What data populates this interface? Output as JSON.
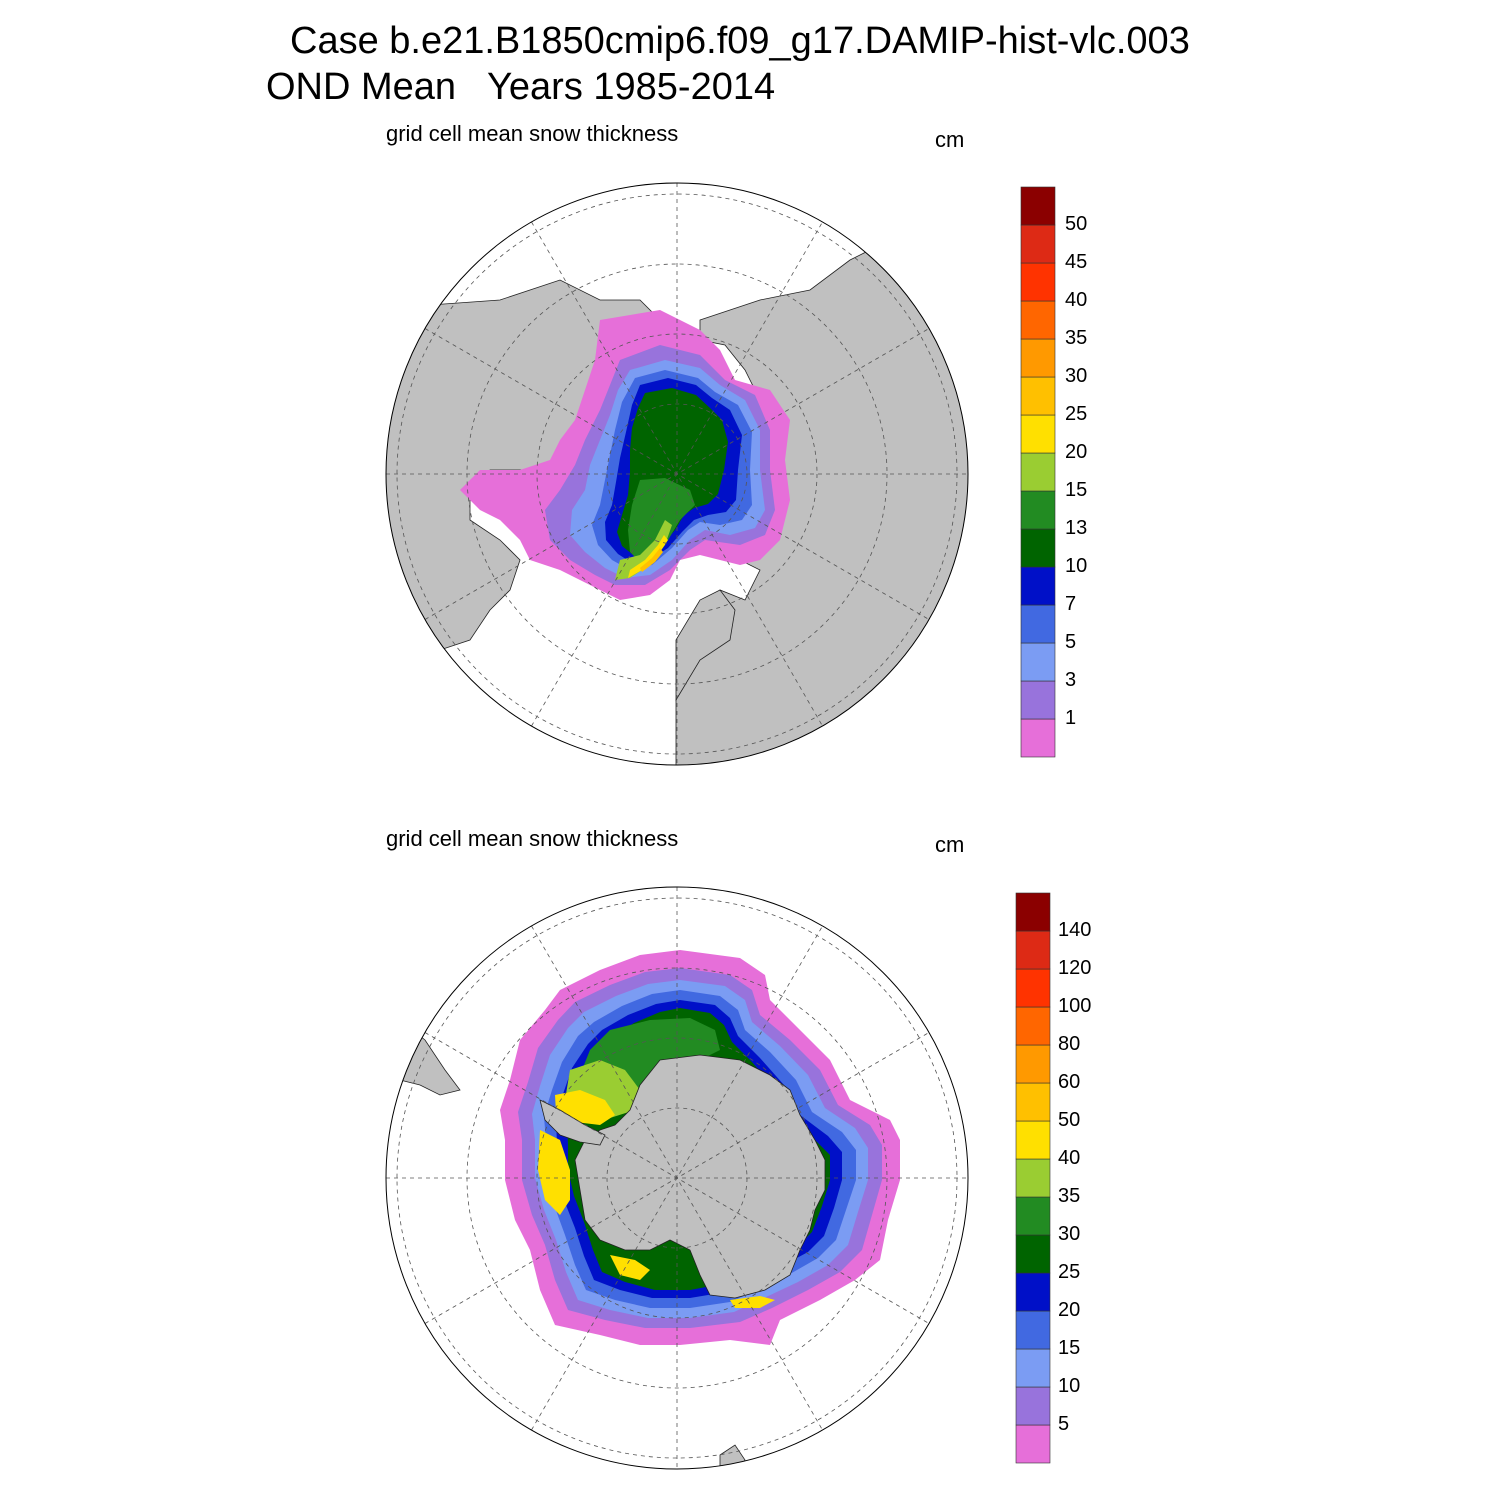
{
  "title": {
    "line1": "Case b.e21.B1850cmip6.f09_g17.DAMIP-hist-vlc.003",
    "line2": "OND Mean   Years 1985-2014"
  },
  "panels": [
    {
      "id": "north",
      "variable": "grid cell mean snow thickness",
      "units": "cm",
      "hemisphere": "north",
      "colorbar": {
        "labels": [
          "1",
          "3",
          "5",
          "7",
          "10",
          "13",
          "15",
          "20",
          "25",
          "30",
          "35",
          "40",
          "45",
          "50"
        ],
        "colors": [
          "#e66fd9",
          "#9873dc",
          "#7b9cf3",
          "#4169e1",
          "#0010c8",
          "#006400",
          "#228b22",
          "#9acd32",
          "#ffe000",
          "#ffc000",
          "#ff9900",
          "#ff6600",
          "#ff3300",
          "#dd2a15",
          "#8b0000"
        ]
      }
    },
    {
      "id": "south",
      "variable": "grid cell mean snow thickness",
      "units": "cm",
      "hemisphere": "south",
      "colorbar": {
        "labels": [
          "5",
          "10",
          "15",
          "20",
          "25",
          "30",
          "35",
          "40",
          "50",
          "60",
          "80",
          "100",
          "120",
          "140"
        ],
        "colors": [
          "#e66fd9",
          "#9873dc",
          "#7b9cf3",
          "#4169e1",
          "#0010c8",
          "#006400",
          "#228b22",
          "#9acd32",
          "#ffe000",
          "#ffc000",
          "#ff9900",
          "#ff6600",
          "#ff3300",
          "#dd2a15",
          "#8b0000"
        ]
      }
    }
  ],
  "colors": {
    "land": "#c0c0c0",
    "ocean": "#ffffff",
    "grid": "#555555"
  }
}
